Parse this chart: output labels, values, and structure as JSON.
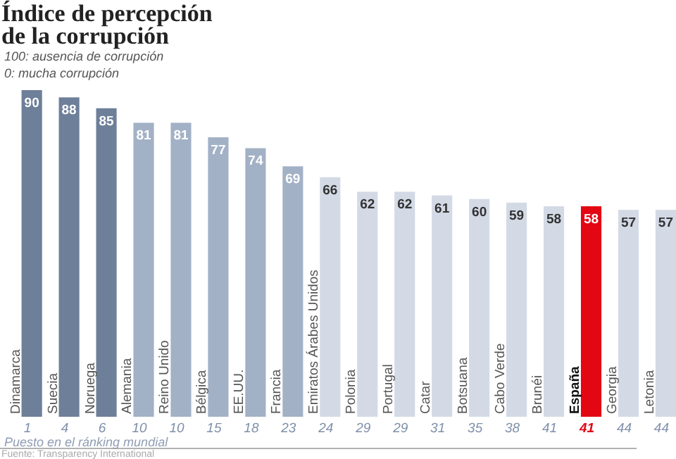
{
  "chart_data": {
    "type": "bar",
    "title": "Índice de percepción de la corrupción",
    "subtitle": "100: ausencia de corrupción",
    "categories": [
      "Dinamarca",
      "Suecia",
      "Noruega",
      "Alemania",
      "Reino Unido",
      "Bélgica",
      "EE.UU.",
      "Francia",
      "Emiratos Árabes Unidos",
      "Polonia",
      "Portugal",
      "Catar",
      "Botsuana",
      "Cabo Verde",
      "Brunéi",
      "España",
      "Georgia",
      "Letonia"
    ],
    "values": [
      90,
      88,
      85,
      81,
      81,
      77,
      74,
      69,
      66,
      62,
      62,
      61,
      60,
      59,
      58,
      58,
      57,
      57
    ],
    "colors": [
      "#6e7f99",
      "#6e7f99",
      "#6e7f99",
      "#a3b1c6",
      "#a3b1c6",
      "#a3b1c6",
      "#a3b1c6",
      "#a3b1c6",
      "#d3dae5",
      "#d3dae5",
      "#d3dae5",
      "#d3dae5",
      "#d3dae5",
      "#d3dae5",
      "#d3dae5",
      "#e30613",
      "#d3dae5",
      "#d3dae5"
    ],
    "data_labels": true,
    "annotations": [
      "0: mucha corrupción",
      "Puesto en el ránking mundial",
      "Fuente: Transparency International",
      "1",
      "4",
      "6",
      "10",
      "10",
      "15",
      "18",
      "23",
      "24",
      "29",
      "29",
      "31",
      "35",
      "38",
      "41",
      "41",
      "44",
      "44"
    ]
  }
}
